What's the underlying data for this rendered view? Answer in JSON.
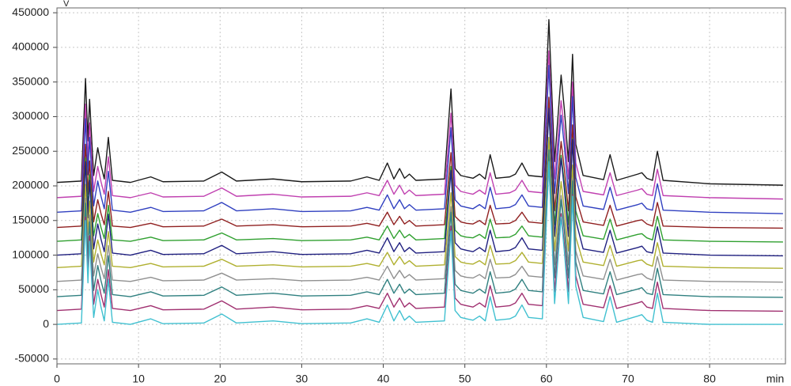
{
  "chart_data": {
    "type": "line",
    "y_label": "V",
    "x_label": "min",
    "x": [
      0,
      3,
      3.5,
      3.8,
      4.0,
      4.5,
      5.0,
      5.4,
      5.8,
      6.3,
      6.8,
      9,
      11.5,
      13,
      18,
      20.2,
      22,
      26.5,
      30,
      36,
      38,
      39.5,
      40.5,
      41.3,
      42,
      42.6,
      43.2,
      44,
      47.5,
      48.3,
      48.8,
      49.5,
      50.2,
      51,
      51.8,
      52.5,
      53.1,
      53.8,
      55.5,
      56.2,
      57,
      57.8,
      59.5,
      60.3,
      61,
      61.8,
      62.2,
      62.7,
      63.2,
      63.6,
      64.5,
      67,
      67.8,
      68.6,
      71.2,
      71.7,
      72.3,
      73,
      73.6,
      74.3,
      80,
      89
    ],
    "xlim": [
      0,
      89.3
    ],
    "xticks": [
      0,
      10,
      20,
      30,
      40,
      50,
      60,
      70,
      80
    ],
    "ylim": [
      -57000,
      457000
    ],
    "yticks": [
      -50000,
      0,
      50000,
      100000,
      150000,
      200000,
      250000,
      300000,
      350000,
      400000,
      450000
    ],
    "grid": true,
    "series": [
      {
        "color": "#1a1a1a",
        "values": [
          205000,
          207000,
          355000,
          265000,
          325000,
          215000,
          255000,
          230000,
          210000,
          270000,
          208000,
          205000,
          213000,
          206000,
          207000,
          220000,
          207000,
          210000,
          206000,
          207000,
          213000,
          208000,
          233000,
          210000,
          225000,
          211000,
          217000,
          208000,
          210000,
          340000,
          225000,
          215000,
          213000,
          211000,
          217000,
          210000,
          245000,
          211000,
          213000,
          217000,
          233000,
          215000,
          213000,
          440000,
          235000,
          360000,
          310000,
          235000,
          390000,
          260000,
          215000,
          209000,
          245000,
          208000,
          217000,
          219000,
          211000,
          208000,
          250000,
          208000,
          203000,
          201000
        ]
      },
      {
        "color": "#c040b0",
        "values": [
          183000,
          185000,
          318000,
          237000,
          291000,
          192000,
          228000,
          206000,
          188000,
          242000,
          186000,
          183000,
          190000,
          184000,
          185000,
          197000,
          185000,
          188000,
          184000,
          185000,
          190000,
          186000,
          208000,
          188000,
          201000,
          188000,
          194000,
          186000,
          188000,
          305000,
          201000,
          192000,
          190000,
          188000,
          194000,
          188000,
          219000,
          188000,
          190000,
          194000,
          208000,
          192000,
          190000,
          395000,
          210000,
          323000,
          278000,
          210000,
          350000,
          233000,
          192000,
          187000,
          219000,
          186000,
          194000,
          196000,
          188000,
          186000,
          224000,
          186000,
          183000,
          181000
        ]
      },
      {
        "color": "#3040c0",
        "values": [
          162000,
          164000,
          297000,
          216000,
          270000,
          171000,
          207000,
          185000,
          167000,
          221000,
          165000,
          162000,
          169000,
          163000,
          164000,
          176000,
          164000,
          167000,
          163000,
          164000,
          169000,
          165000,
          187000,
          167000,
          180000,
          167000,
          173000,
          165000,
          167000,
          284000,
          180000,
          171000,
          169000,
          167000,
          173000,
          167000,
          198000,
          167000,
          169000,
          173000,
          187000,
          171000,
          169000,
          374000,
          189000,
          302000,
          257000,
          189000,
          329000,
          212000,
          171000,
          166000,
          198000,
          165000,
          173000,
          175000,
          167000,
          165000,
          203000,
          165000,
          162000,
          160000
        ]
      },
      {
        "color": "#902020",
        "values": [
          140000,
          142000,
          260000,
          188000,
          236000,
          148000,
          180000,
          160000,
          144000,
          192000,
          142000,
          140000,
          146000,
          141000,
          142000,
          152000,
          142000,
          144000,
          141000,
          142000,
          146000,
          142000,
          162000,
          144000,
          156000,
          145000,
          150000,
          142000,
          144000,
          248000,
          156000,
          148000,
          146000,
          145000,
          150000,
          144000,
          172000,
          145000,
          146000,
          150000,
          162000,
          148000,
          146000,
          328000,
          164000,
          264000,
          224000,
          164000,
          288000,
          184000,
          148000,
          143000,
          172000,
          142000,
          150000,
          151000,
          145000,
          142000,
          176000,
          142000,
          140000,
          139000
        ]
      },
      {
        "color": "#30a030",
        "values": [
          120000,
          122000,
          240000,
          168000,
          216000,
          128000,
          160000,
          140000,
          124000,
          172000,
          122000,
          120000,
          126000,
          121000,
          122000,
          132000,
          122000,
          124000,
          121000,
          122000,
          126000,
          122000,
          142000,
          124000,
          136000,
          125000,
          130000,
          122000,
          124000,
          228000,
          136000,
          128000,
          126000,
          125000,
          130000,
          124000,
          152000,
          125000,
          126000,
          130000,
          142000,
          128000,
          126000,
          308000,
          144000,
          244000,
          204000,
          144000,
          268000,
          164000,
          128000,
          123000,
          152000,
          122000,
          130000,
          131000,
          125000,
          122000,
          156000,
          122000,
          120000,
          119000
        ]
      },
      {
        "color": "#202080",
        "values": [
          100000,
          102000,
          235000,
          154000,
          208000,
          109000,
          145000,
          123000,
          105000,
          159000,
          103000,
          100000,
          107000,
          101000,
          102000,
          114000,
          102000,
          105000,
          101000,
          102000,
          107000,
          103000,
          125000,
          105000,
          118000,
          105000,
          111000,
          103000,
          105000,
          222000,
          118000,
          109000,
          107000,
          105000,
          111000,
          105000,
          136000,
          105000,
          107000,
          111000,
          125000,
          109000,
          107000,
          312000,
          127000,
          240000,
          195000,
          127000,
          267000,
          150000,
          109000,
          104000,
          136000,
          103000,
          111000,
          113000,
          105000,
          103000,
          141000,
          103000,
          100000,
          99000
        ]
      },
      {
        "color": "#b0b030",
        "values": [
          82000,
          84000,
          202000,
          130000,
          178000,
          90000,
          122000,
          102000,
          86000,
          134000,
          84000,
          82000,
          88000,
          83000,
          84000,
          94000,
          84000,
          86000,
          83000,
          84000,
          88000,
          84000,
          104000,
          86000,
          98000,
          87000,
          92000,
          84000,
          86000,
          190000,
          98000,
          90000,
          88000,
          87000,
          92000,
          86000,
          114000,
          87000,
          88000,
          92000,
          104000,
          90000,
          88000,
          270000,
          106000,
          206000,
          166000,
          106000,
          230000,
          126000,
          90000,
          85000,
          114000,
          84000,
          92000,
          93000,
          87000,
          84000,
          118000,
          84000,
          82000,
          81000
        ]
      },
      {
        "color": "#909090",
        "values": [
          62000,
          64000,
          182000,
          110000,
          158000,
          70000,
          102000,
          82000,
          66000,
          114000,
          64000,
          62000,
          68000,
          63000,
          64000,
          74000,
          64000,
          66000,
          63000,
          64000,
          68000,
          64000,
          84000,
          66000,
          78000,
          67000,
          72000,
          64000,
          66000,
          170000,
          78000,
          70000,
          68000,
          67000,
          72000,
          66000,
          94000,
          67000,
          68000,
          72000,
          84000,
          70000,
          68000,
          250000,
          86000,
          186000,
          146000,
          86000,
          210000,
          106000,
          70000,
          65000,
          94000,
          64000,
          72000,
          73000,
          67000,
          64000,
          98000,
          64000,
          62000,
          61000
        ]
      },
      {
        "color": "#308080",
        "values": [
          40000,
          42000,
          175000,
          94000,
          148000,
          49000,
          85000,
          63000,
          45000,
          99000,
          43000,
          40000,
          47000,
          41000,
          42000,
          54000,
          42000,
          45000,
          41000,
          42000,
          47000,
          43000,
          65000,
          45000,
          58000,
          45000,
          51000,
          43000,
          45000,
          162000,
          58000,
          49000,
          47000,
          45000,
          51000,
          45000,
          76000,
          45000,
          47000,
          51000,
          65000,
          49000,
          47000,
          252000,
          67000,
          180000,
          135000,
          67000,
          207000,
          90000,
          49000,
          44000,
          76000,
          43000,
          51000,
          53000,
          45000,
          43000,
          81000,
          43000,
          40000,
          39000
        ]
      },
      {
        "color": "#a03070",
        "values": [
          20000,
          22000,
          155000,
          74000,
          128000,
          29000,
          65000,
          43000,
          25000,
          79000,
          23000,
          20000,
          27000,
          21000,
          22000,
          34000,
          22000,
          25000,
          21000,
          22000,
          27000,
          23000,
          45000,
          25000,
          38000,
          25000,
          31000,
          23000,
          25000,
          142000,
          38000,
          29000,
          27000,
          25000,
          31000,
          25000,
          56000,
          25000,
          27000,
          31000,
          45000,
          29000,
          27000,
          232000,
          47000,
          160000,
          115000,
          47000,
          187000,
          70000,
          29000,
          24000,
          56000,
          23000,
          31000,
          33000,
          25000,
          23000,
          61000,
          23000,
          20000,
          19000
        ]
      },
      {
        "color": "#40c0d0",
        "values": [
          0,
          2000,
          150000,
          60000,
          120000,
          10000,
          50000,
          25000,
          5000,
          65000,
          3000,
          0,
          8000,
          1000,
          2000,
          15000,
          2000,
          5000,
          1000,
          2000,
          8000,
          3000,
          28000,
          5000,
          20000,
          6000,
          12000,
          3000,
          5000,
          135000,
          20000,
          10000,
          8000,
          6000,
          12000,
          5000,
          40000,
          6000,
          8000,
          12000,
          28000,
          10000,
          8000,
          235000,
          30000,
          155000,
          105000,
          30000,
          185000,
          55000,
          10000,
          4000,
          40000,
          3000,
          12000,
          14000,
          6000,
          3000,
          45000,
          3000,
          0,
          0
        ]
      }
    ]
  }
}
